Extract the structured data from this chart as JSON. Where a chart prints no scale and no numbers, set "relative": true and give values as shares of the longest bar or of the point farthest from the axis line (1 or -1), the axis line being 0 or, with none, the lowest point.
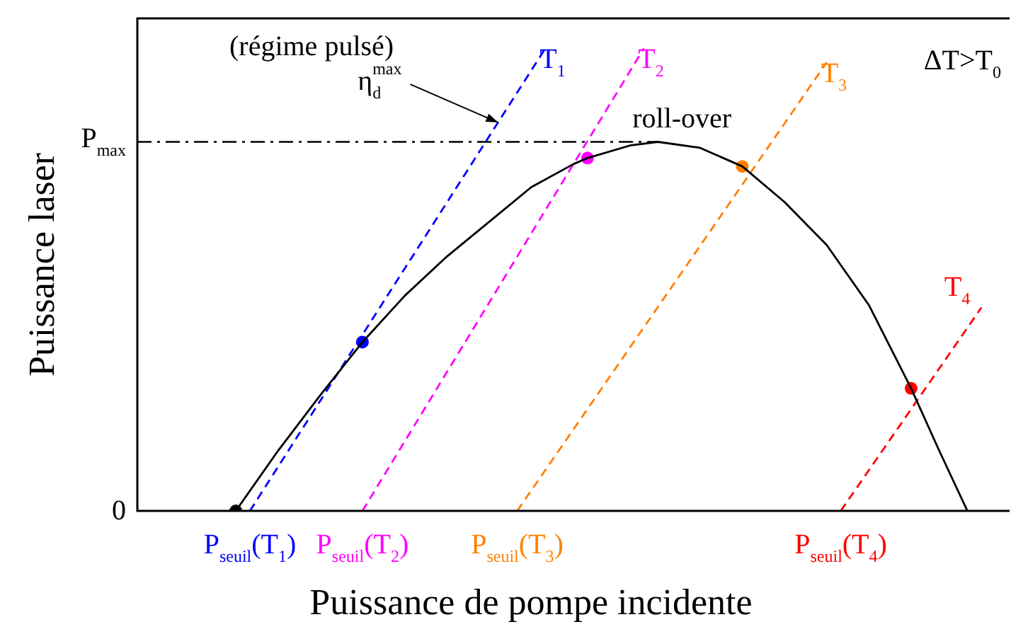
{
  "chart_data": {
    "type": "line",
    "relative": true,
    "xlabel": "Puissance de pompe incidente",
    "ylabel": "Puissance laser",
    "legend": false,
    "categories": [
      null,
      null,
      null,
      null,
      null,
      null,
      null,
      null,
      "P$_{seuil}$(T$_{1}$)",
      null,
      null,
      null,
      null,
      null,
      null,
      null,
      "P$_{seuil}$(T$_{2}$)",
      null,
      null,
      null,
      null,
      null,
      null,
      null,
      null,
      null,
      null,
      "P$_{seuil}$(T$_{3}$)",
      null,
      null,
      null,
      null,
      null,
      null,
      null,
      null,
      null,
      null,
      null,
      null,
      null,
      null,
      null,
      null,
      null,
      null,
      null,
      null,
      null,
      null,
      "P$_{seuil}$(T$_{4}$)",
      null,
      null,
      null,
      null,
      null,
      null,
      null,
      null,
      null,
      null,
      null,
      null
    ],
    "series": [
      {
        "color": "#000000",
        "line_style": "solid",
        "values": [
          null,
          null,
          null,
          null,
          null,
          null,
          null,
          0,
          null,
          null,
          0.13,
          null,
          null,
          0.25,
          null,
          null,
          0.365,
          null,
          null,
          0.465,
          null,
          null,
          0.55,
          null,
          null,
          0.625,
          null,
          null,
          0.7,
          null,
          null,
          0.75,
          0.763,
          null,
          null,
          0.79,
          null,
          0.798,
          null,
          null,
          0.785,
          null,
          null,
          0.745,
          null,
          null,
          0.668,
          null,
          null,
          0.575,
          null,
          null,
          0.445,
          null,
          null,
          0.265,
          null,
          0.13,
          null,
          0,
          null,
          null,
          null
        ]
      },
      {
        "name": "T$_{1}$",
        "color": "#0000ff",
        "line_style": "dashed",
        "values": [
          null,
          null,
          null,
          null,
          null,
          null,
          null,
          null,
          0,
          null,
          null,
          null,
          null,
          null,
          null,
          null,
          null,
          null,
          null,
          null,
          null,
          null,
          null,
          null,
          null,
          null,
          null,
          null,
          null,
          1,
          null,
          null,
          null,
          null,
          null,
          null,
          null,
          null,
          null,
          null,
          null,
          null,
          null,
          null,
          null,
          null,
          null,
          null,
          null,
          null,
          null,
          null,
          null,
          null,
          null,
          null,
          null,
          null,
          null,
          null,
          null,
          null,
          null
        ]
      },
      {
        "name": "T$_{2}$",
        "color": "#ff00ff",
        "line_style": "dashed",
        "values": [
          null,
          null,
          null,
          null,
          null,
          null,
          null,
          null,
          null,
          null,
          null,
          null,
          null,
          null,
          null,
          null,
          0,
          null,
          null,
          null,
          null,
          null,
          null,
          null,
          null,
          null,
          null,
          null,
          null,
          null,
          null,
          null,
          null,
          null,
          null,
          null,
          1,
          null,
          null,
          null,
          null,
          null,
          null,
          null,
          null,
          null,
          null,
          null,
          null,
          null,
          null,
          null,
          null,
          null,
          null,
          null,
          null,
          null,
          null,
          null,
          null,
          null,
          null
        ]
      },
      {
        "name": "T$_{3}$",
        "color": "#ff8000",
        "line_style": "dashed",
        "values": [
          null,
          null,
          null,
          null,
          null,
          null,
          null,
          null,
          null,
          null,
          null,
          null,
          null,
          null,
          null,
          null,
          null,
          null,
          null,
          null,
          null,
          null,
          null,
          null,
          null,
          null,
          null,
          0,
          null,
          null,
          null,
          null,
          null,
          null,
          null,
          null,
          null,
          null,
          null,
          null,
          null,
          null,
          null,
          null,
          null,
          null,
          null,
          null,
          null,
          0.97,
          null,
          null,
          null,
          null,
          null,
          null,
          null,
          null,
          null,
          null,
          null,
          null,
          null
        ]
      },
      {
        "name": "T$_{4}$",
        "color": "#ff0000",
        "line_style": "dashed",
        "values": [
          null,
          null,
          null,
          null,
          null,
          null,
          null,
          null,
          null,
          null,
          null,
          null,
          null,
          null,
          null,
          null,
          null,
          null,
          null,
          null,
          null,
          null,
          null,
          null,
          null,
          null,
          null,
          null,
          null,
          null,
          null,
          null,
          null,
          null,
          null,
          null,
          null,
          null,
          null,
          null,
          null,
          null,
          null,
          null,
          null,
          null,
          null,
          null,
          null,
          null,
          0,
          null,
          null,
          null,
          null,
          null,
          null,
          null,
          null,
          null,
          0.44,
          null,
          null
        ]
      },
      {
        "type": "scatter",
        "marker": "circle",
        "colors": [
          null,
          null,
          null,
          null,
          null,
          null,
          null,
          "#000000",
          null,
          null,
          null,
          null,
          null,
          null,
          null,
          null,
          "#0000ff",
          null,
          null,
          null,
          null,
          null,
          null,
          null,
          null,
          null,
          null,
          null,
          null,
          null,
          null,
          null,
          "#ff00ff",
          null,
          null,
          null,
          null,
          null,
          null,
          null,
          null,
          null,
          null,
          "#ff8000",
          null,
          null,
          null,
          null,
          null,
          null,
          null,
          null,
          null,
          null,
          null,
          "#ff0000",
          null,
          null,
          null,
          null,
          null,
          null,
          null
        ],
        "values": [
          null,
          null,
          null,
          null,
          null,
          null,
          null,
          0,
          null,
          null,
          null,
          null,
          null,
          null,
          null,
          null,
          0.365,
          null,
          null,
          null,
          null,
          null,
          null,
          null,
          null,
          null,
          null,
          null,
          null,
          null,
          null,
          null,
          0.763,
          null,
          null,
          null,
          null,
          null,
          null,
          null,
          null,
          null,
          null,
          0.745,
          null,
          null,
          null,
          null,
          null,
          null,
          null,
          null,
          null,
          null,
          null,
          0.265,
          null,
          null,
          null,
          null,
          null,
          null,
          null
        ]
      }
    ],
    "ref_lines": [
      {
        "axis": "y",
        "value": 0.798,
        "label": "P$_{max}$",
        "line_style": "dashdot",
        "color": "#000000"
      }
    ],
    "annotations": [
      "(régime pulsé)",
      "η$_{d}$$^{max}$",
      "roll-over",
      "ΔT>T$_{0}$",
      "0"
    ]
  }
}
